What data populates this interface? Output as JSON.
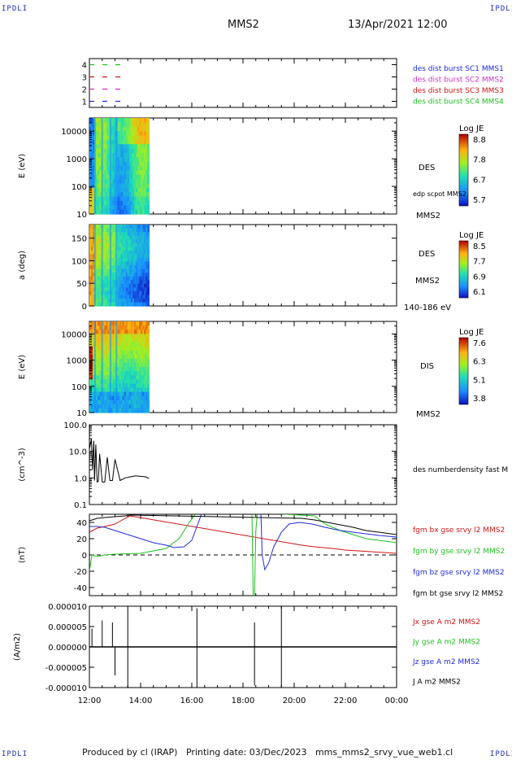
{
  "header": {
    "corner_label": "IPDLI",
    "title": "MMS2",
    "datetime": "13/Apr/2021 12:00"
  },
  "footer": {
    "text": "Produced by cl (IRAP)   Printing date: 03/Dec/2023   mms_mms2_srvy_vue_web1.cl"
  },
  "x_axis": {
    "ticks": [
      "12:00",
      "14:00",
      "16:00",
      "18:00",
      "20:00",
      "22:00",
      "00:00"
    ],
    "range_hours": [
      12,
      24
    ]
  },
  "colors": {
    "mms1": "#1f2bd8",
    "mms2": "#d030c8",
    "mms3": "#d01515",
    "mms4": "#20c020",
    "black": "#000000"
  },
  "chart_data": [
    {
      "type": "line",
      "panel": "spacecraft-status",
      "y_ticks": [
        "1",
        "2",
        "3",
        "4"
      ],
      "ylim": [
        0.5,
        4.5
      ],
      "legend": [
        {
          "label": "des dist burst SC1 MMS1",
          "color": "#1f2bd8"
        },
        {
          "label": "des dist burst SC2 MMS2",
          "color": "#d030c8"
        },
        {
          "label": "des dist burst SC3 MMS3",
          "color": "#d01515"
        },
        {
          "label": "des dist burst SC4 MMS4",
          "color": "#20c020"
        }
      ],
      "series": [
        {
          "name": "des dist burst SC1 MMS1",
          "level": 1,
          "x_hours": [
            12.0,
            13.5
          ]
        },
        {
          "name": "des dist burst SC2 MMS2",
          "level": 2,
          "x_hours": [
            12.0,
            13.5
          ]
        },
        {
          "name": "des dist burst SC3 MMS3",
          "level": 3,
          "x_hours": [
            12.0,
            13.5
          ]
        },
        {
          "name": "des dist burst SC4 MMS4",
          "level": 4,
          "x_hours": [
            12.0,
            13.5
          ]
        }
      ]
    },
    {
      "type": "heatmap",
      "panel": "des-energy-spectrogram",
      "ylabel": "E (eV)",
      "y_ticks": [
        "10",
        "100",
        "1000",
        "10000"
      ],
      "ylim": [
        10,
        30000
      ],
      "log_y": true,
      "x_extent_hours": [
        12.0,
        14.33
      ],
      "right_labels": [
        "DES",
        "edp scpot MMS2",
        "MMS2"
      ],
      "colorbar": {
        "title": "Log JE",
        "ticks": [
          "8.8",
          "7.8",
          "6.7",
          "5.7"
        ]
      }
    },
    {
      "type": "heatmap",
      "panel": "des-pitch-angle",
      "ylabel": "a (deg)",
      "y_ticks": [
        "0",
        "50",
        "100",
        "150"
      ],
      "ylim": [
        0,
        180
      ],
      "x_extent_hours": [
        12.0,
        14.33
      ],
      "right_labels": [
        "DES",
        "MMS2",
        "140-186 eV"
      ],
      "colorbar": {
        "title": "Log JE",
        "ticks": [
          "8.5",
          "7.7",
          "6.9",
          "6.1"
        ]
      }
    },
    {
      "type": "heatmap",
      "panel": "dis-energy-spectrogram",
      "ylabel": "E (eV)",
      "y_ticks": [
        "10",
        "100",
        "1000",
        "10000"
      ],
      "ylim": [
        10,
        30000
      ],
      "log_y": true,
      "x_extent_hours": [
        12.0,
        14.33
      ],
      "right_labels": [
        "DIS",
        "MMS2"
      ],
      "colorbar": {
        "title": "Log JE",
        "ticks": [
          "7.6",
          "6.3",
          "5.1",
          "3.8"
        ]
      }
    },
    {
      "type": "line",
      "panel": "density",
      "ylabel": "(cm^-3)",
      "y_ticks": [
        "0.1",
        "1.0",
        "10.0",
        "100.0"
      ],
      "ylim": [
        0.1,
        100
      ],
      "log_y": true,
      "legend": [
        {
          "label": "des numberdensity fast M",
          "color": "#000000"
        }
      ],
      "series": [
        {
          "name": "des numberdensity fast M",
          "x": [
            12.0,
            12.08,
            12.12,
            12.17,
            12.2,
            12.25,
            12.3,
            12.35,
            12.4,
            12.5,
            12.6,
            12.7,
            12.8,
            12.9,
            13.0,
            13.2,
            13.4,
            13.6,
            13.8,
            14.0,
            14.2,
            14.33
          ],
          "y": [
            12,
            30,
            2,
            25,
            0.8,
            18,
            0.7,
            0.75,
            8,
            0.7,
            0.7,
            6,
            0.8,
            0.8,
            5,
            0.8,
            1.0,
            1.1,
            1.2,
            1.15,
            1.1,
            0.95
          ]
        }
      ]
    },
    {
      "type": "line",
      "panel": "magnetic-field",
      "ylabel": "(nT)",
      "y_ticks": [
        "-40",
        "-20",
        "0",
        "20",
        "40"
      ],
      "ylim": [
        -50,
        50
      ],
      "legend": [
        {
          "label": "fgm bx gse srvy l2 MMS2",
          "color": "#d01515"
        },
        {
          "label": "fgm by gse srvy l2 MMS2",
          "color": "#20c020"
        },
        {
          "label": "fgm bz gse srvy l2 MMS2",
          "color": "#1f2bd8"
        },
        {
          "label": "fgm bt gse srvy l2 MMS2",
          "color": "#000000"
        }
      ],
      "series": [
        {
          "name": "fgm bx gse srvy l2 MMS2",
          "color": "#d01515",
          "x": [
            12.0,
            12.3,
            12.6,
            13.0,
            13.4,
            13.6,
            20.3,
            20.8,
            21.5,
            22.0,
            22.5,
            23.0,
            23.5,
            24.0
          ],
          "y": [
            28,
            33,
            35,
            38,
            45,
            48,
            12,
            10,
            8,
            6,
            5,
            4,
            3,
            2
          ]
        },
        {
          "name": "fgm by gse srvy l2 MMS2",
          "color": "#20c020",
          "x": [
            12.0,
            12.1,
            12.3,
            12.6,
            13.0,
            14.0,
            15.0,
            15.5,
            15.9,
            16.2,
            18.35,
            18.4,
            18.45,
            18.5,
            18.55,
            18.6,
            20.8,
            21.2,
            21.8,
            22.3,
            22.8,
            23.3,
            24.0
          ],
          "y": [
            -20,
            0,
            -2,
            0,
            1,
            2,
            8,
            20,
            40,
            52,
            52,
            -50,
            -50,
            30,
            48,
            52,
            48,
            38,
            30,
            25,
            20,
            18,
            15
          ]
        },
        {
          "name": "fgm bz gse srvy l2 MMS2",
          "color": "#1f2bd8",
          "x": [
            12.0,
            12.3,
            12.6,
            13.0,
            13.4,
            14.0,
            14.5,
            15.0,
            15.3,
            15.7,
            16.0,
            16.4,
            18.7,
            18.75,
            18.85,
            19.0,
            19.2,
            19.5,
            19.8,
            20.2,
            20.7,
            21.2,
            21.8,
            22.3,
            22.8,
            23.3,
            24.0
          ],
          "y": [
            35,
            35,
            34,
            30,
            26,
            20,
            15,
            12,
            9,
            10,
            18,
            52,
            52,
            0,
            -18,
            -10,
            10,
            28,
            38,
            40,
            38,
            34,
            30,
            28,
            26,
            24,
            22
          ]
        },
        {
          "name": "fgm bt gse srvy l2 MMS2",
          "color": "#000000",
          "x": [
            12.0,
            12.3,
            12.6,
            13.0,
            13.4,
            13.6,
            20.3,
            20.8,
            21.3,
            21.8,
            22.3,
            22.8,
            23.3,
            24.0
          ],
          "y": [
            42,
            45,
            46,
            47,
            48,
            49,
            45,
            43,
            40,
            37,
            34,
            30,
            28,
            25
          ]
        }
      ],
      "reference_line": {
        "y": 0,
        "style": "dashed"
      }
    },
    {
      "type": "line",
      "panel": "current-density",
      "ylabel": "(A/m2)",
      "y_ticks": [
        "-0.000010",
        "-0.000005",
        "0.000000",
        "0.000005",
        "0.000010"
      ],
      "ylim": [
        -1e-05,
        1e-05
      ],
      "legend": [
        {
          "label": "Jx gse A m2 MMS2",
          "color": "#d01515"
        },
        {
          "label": "Jy gse A m2 MMS2",
          "color": "#20c020"
        },
        {
          "label": "Jz gse A m2 MMS2",
          "color": "#1f2bd8"
        },
        {
          "label": "J A m2 MMS2",
          "color": "#000000"
        }
      ],
      "spikes": [
        {
          "x": 12.1,
          "y": 4.5e-06
        },
        {
          "x": 12.5,
          "y": 6.5e-06
        },
        {
          "x": 12.9,
          "y": 6e-06
        },
        {
          "x": 13.0,
          "y": -7e-06
        },
        {
          "x": 13.5,
          "y": 9.5e-06
        },
        {
          "x": 13.5,
          "y": -1e-05
        },
        {
          "x": 16.2,
          "y": 9.5e-06
        },
        {
          "x": 16.2,
          "y": -1e-05
        },
        {
          "x": 18.45,
          "y": 6e-06
        },
        {
          "x": 18.45,
          "y": -9.5e-06
        },
        {
          "x": 19.5,
          "y": 1e-05
        },
        {
          "x": 19.5,
          "y": -1e-05
        }
      ]
    }
  ]
}
